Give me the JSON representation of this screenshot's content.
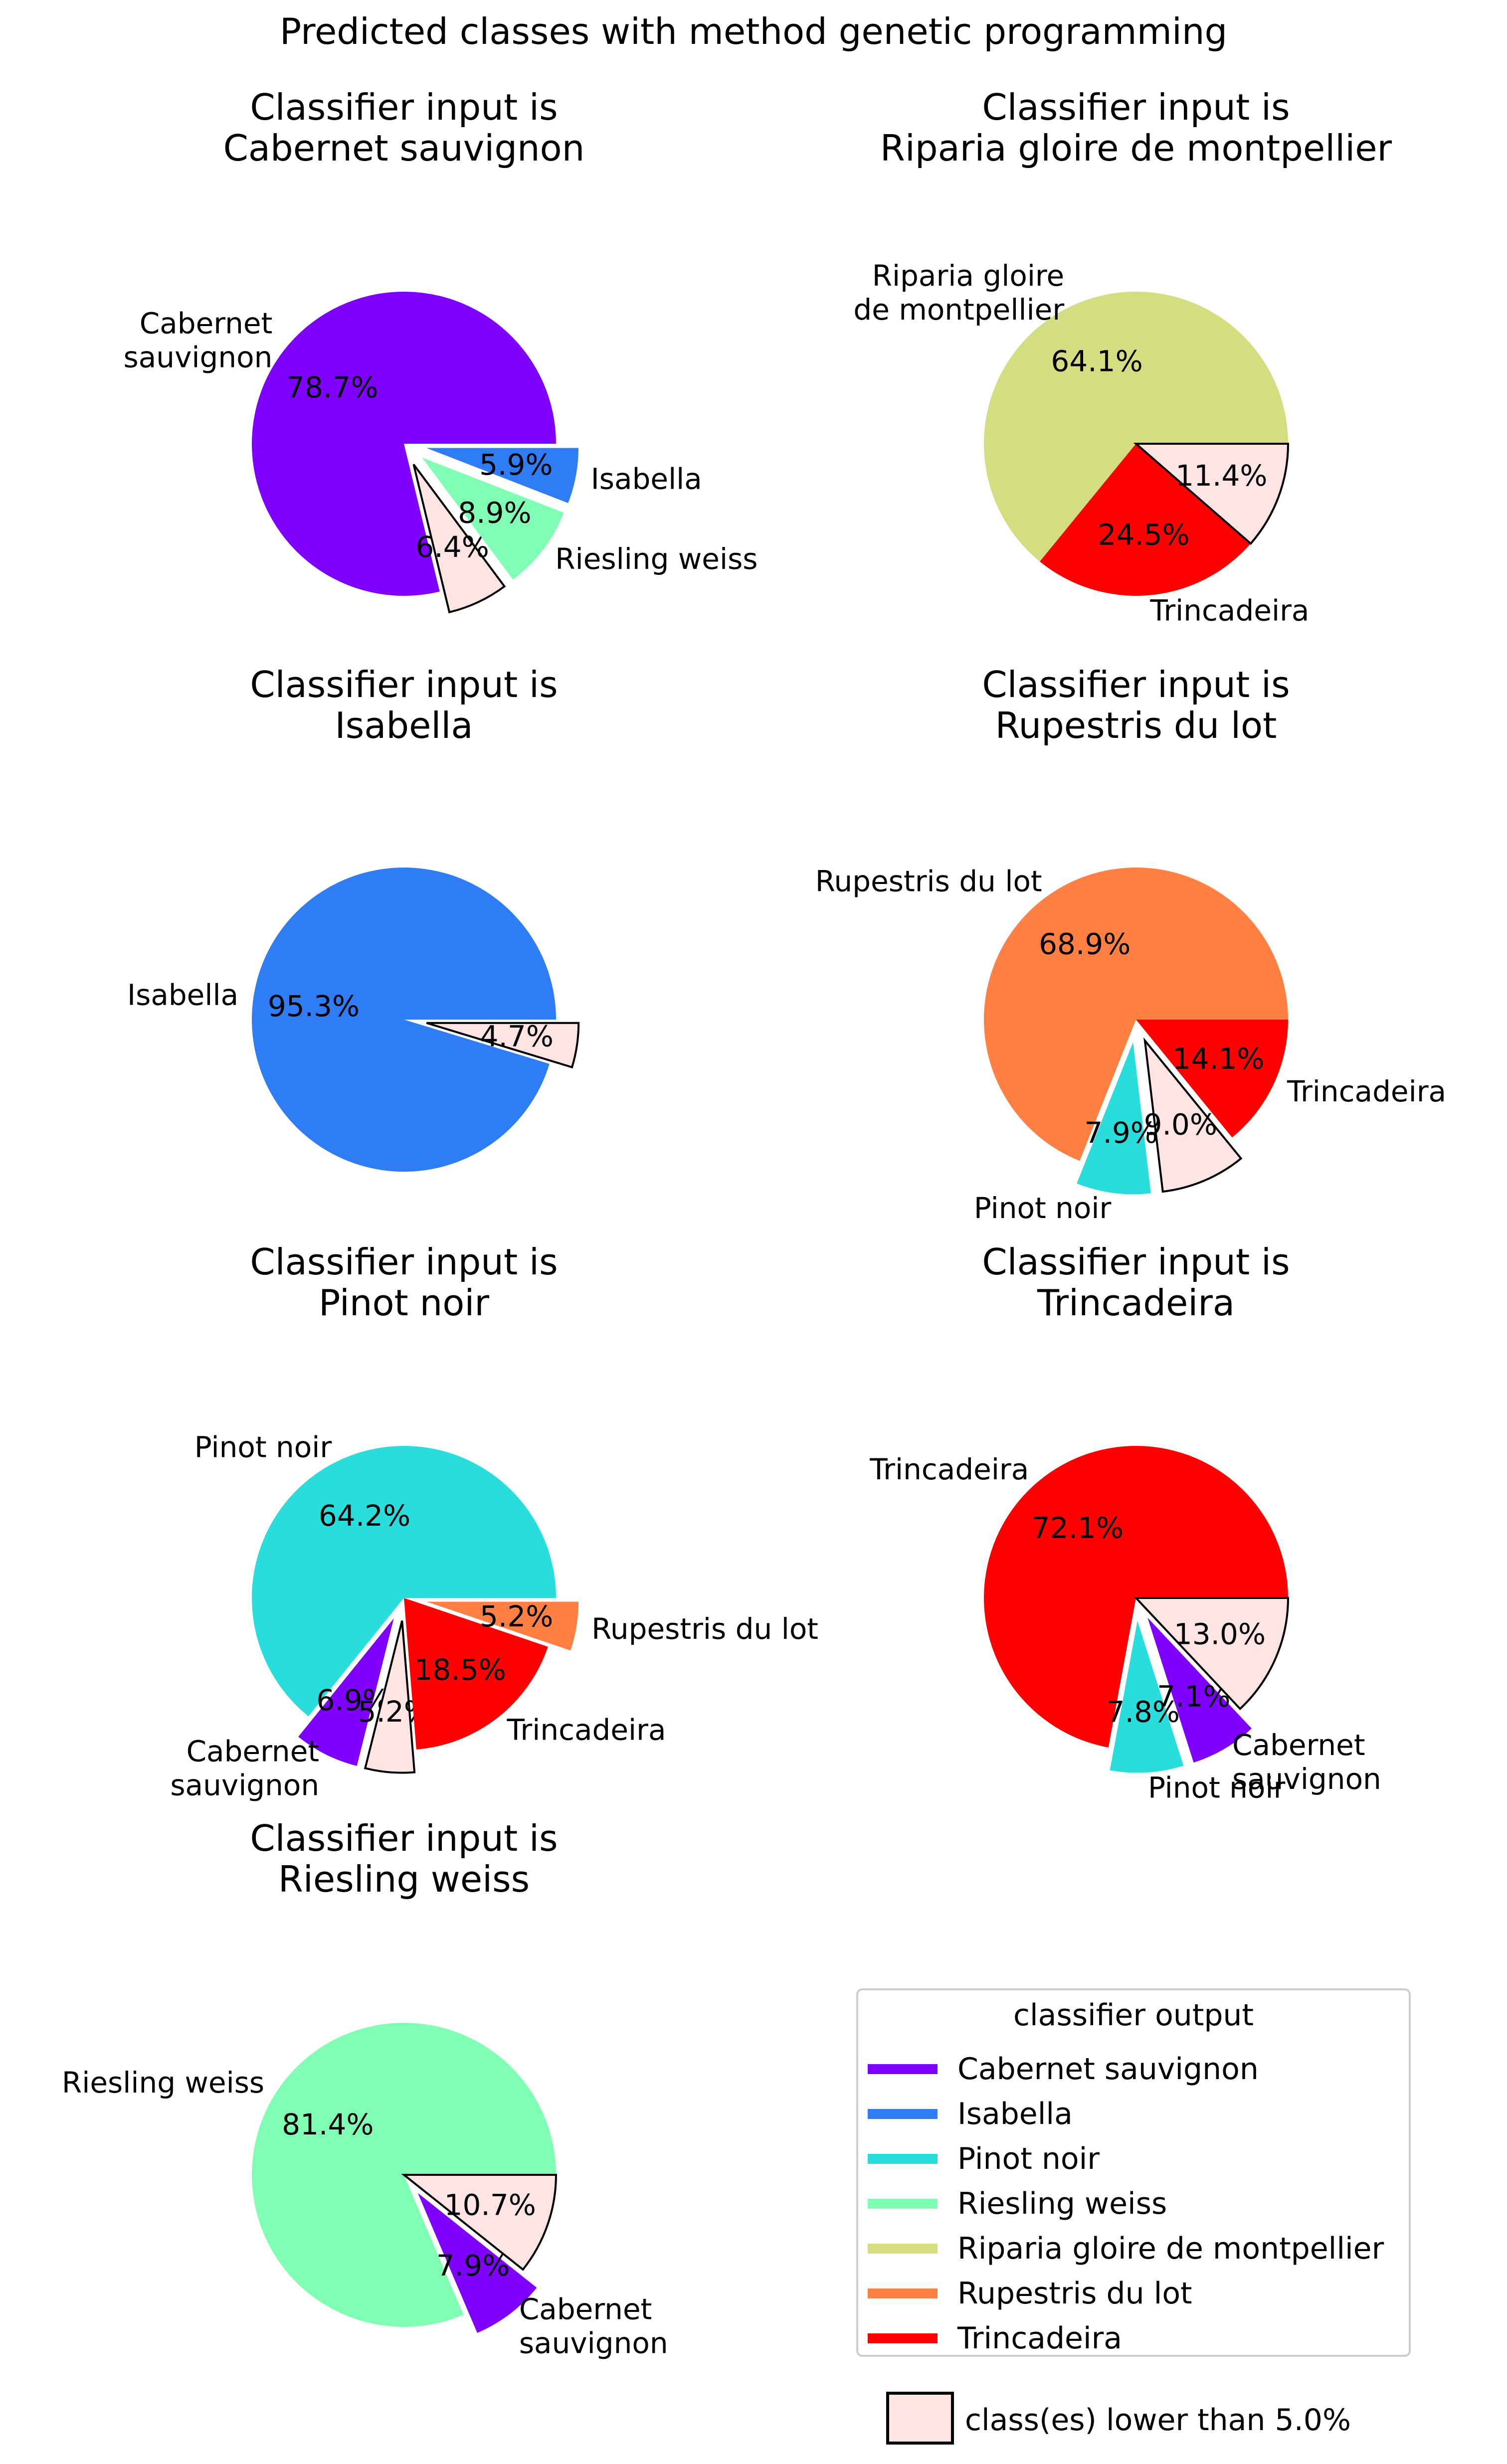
{
  "figure": {
    "title": "Predicted classes with method genetic programming",
    "subplot_title_prefix": "Classifier input is"
  },
  "colors": {
    "Cabernet sauvignon": "#8000ff",
    "Isabella": "#2e7df5",
    "Pinot noir": "#2adddd",
    "Riesling weiss": "#80ffb4",
    "Riparia gloire de montpellier": "#d4dd80",
    "Rupestris du lot": "#ff8042",
    "Trincadeira": "#ff0000",
    "others": "#ffe4e4"
  },
  "chart_data": [
    {
      "type": "pie",
      "title": "Classifier input is Cabernet sauvignon",
      "input_class": "Cabernet sauvignon",
      "slices": [
        {
          "label": "Cabernet sauvignon",
          "value": 78.7,
          "pct_text": "78.7%",
          "color_key": "Cabernet sauvignon",
          "explode": false,
          "label_lines": [
            "Cabernet",
            "sauvignon"
          ]
        },
        {
          "label": "class(es) lower than 5.0%",
          "value": 6.4,
          "pct_text": "6.4%",
          "color_key": "others",
          "explode": true,
          "label_lines": []
        },
        {
          "label": "Riesling weiss",
          "value": 8.9,
          "pct_text": "8.9%",
          "color_key": "Riesling weiss",
          "explode": true,
          "label_lines": [
            "Riesling weiss"
          ]
        },
        {
          "label": "Isabella",
          "value": 5.9,
          "pct_text": "5.9%",
          "color_key": "Isabella",
          "explode": true,
          "label_lines": [
            "Isabella"
          ]
        }
      ]
    },
    {
      "type": "pie",
      "title": "Classifier input is Riparia gloire de montpellier",
      "input_class": "Riparia gloire de montpellier",
      "slices": [
        {
          "label": "Riparia gloire de montpellier",
          "value": 64.1,
          "pct_text": "64.1%",
          "color_key": "Riparia gloire de montpellier",
          "explode": false,
          "label_lines": [
            "Riparia gloire",
            "de montpellier"
          ]
        },
        {
          "label": "Trincadeira",
          "value": 24.5,
          "pct_text": "24.5%",
          "color_key": "Trincadeira",
          "explode": false,
          "label_lines": [
            "Trincadeira"
          ]
        },
        {
          "label": "class(es) lower than 5.0%",
          "value": 11.4,
          "pct_text": "11.4%",
          "color_key": "others",
          "explode": false,
          "label_lines": []
        }
      ]
    },
    {
      "type": "pie",
      "title": "Classifier input is Isabella",
      "input_class": "Isabella",
      "slices": [
        {
          "label": "Isabella",
          "value": 95.3,
          "pct_text": "95.3%",
          "color_key": "Isabella",
          "explode": false,
          "label_lines": [
            "Isabella"
          ]
        },
        {
          "label": "class(es) lower than 5.0%",
          "value": 4.7,
          "pct_text": "4.7%",
          "color_key": "others",
          "explode": true,
          "label_lines": []
        }
      ]
    },
    {
      "type": "pie",
      "title": "Classifier input is Rupestris du lot",
      "input_class": "Rupestris du lot",
      "slices": [
        {
          "label": "Rupestris du lot",
          "value": 68.9,
          "pct_text": "68.9%",
          "color_key": "Rupestris du lot",
          "explode": false,
          "label_lines": [
            "Rupestris du lot"
          ]
        },
        {
          "label": "Pinot noir",
          "value": 7.9,
          "pct_text": "7.9%",
          "color_key": "Pinot noir",
          "explode": true,
          "label_lines": [
            "Pinot noir"
          ]
        },
        {
          "label": "class(es) lower than 5.0%",
          "value": 9.0,
          "pct_text": "9.0%",
          "color_key": "others",
          "explode": true,
          "label_lines": []
        },
        {
          "label": "Trincadeira",
          "value": 14.1,
          "pct_text": "14.1%",
          "color_key": "Trincadeira",
          "explode": false,
          "label_lines": [
            "Trincadeira"
          ]
        }
      ]
    },
    {
      "type": "pie",
      "title": "Classifier input is Pinot noir",
      "input_class": "Pinot noir",
      "slices": [
        {
          "label": "Pinot noir",
          "value": 64.2,
          "pct_text": "64.2%",
          "color_key": "Pinot noir",
          "explode": false,
          "label_lines": [
            "Pinot noir"
          ]
        },
        {
          "label": "Cabernet sauvignon",
          "value": 6.9,
          "pct_text": "6.9%",
          "color_key": "Cabernet sauvignon",
          "explode": true,
          "label_lines": [
            "Cabernet",
            "sauvignon"
          ]
        },
        {
          "label": "class(es) lower than 5.0%",
          "value": 5.2,
          "pct_text": "5.2%",
          "color_key": "others",
          "explode": true,
          "label_lines": []
        },
        {
          "label": "Trincadeira",
          "value": 18.5,
          "pct_text": "18.5%",
          "color_key": "Trincadeira",
          "explode": false,
          "label_lines": [
            "Trincadeira"
          ]
        },
        {
          "label": "Rupestris du lot",
          "value": 5.2,
          "pct_text": "5.2%",
          "color_key": "Rupestris du lot",
          "explode": true,
          "label_lines": [
            "Rupestris du lot"
          ]
        }
      ]
    },
    {
      "type": "pie",
      "title": "Classifier input is Trincadeira",
      "input_class": "Trincadeira",
      "slices": [
        {
          "label": "Trincadeira",
          "value": 72.1,
          "pct_text": "72.1%",
          "color_key": "Trincadeira",
          "explode": false,
          "label_lines": [
            "Trincadeira"
          ]
        },
        {
          "label": "Pinot noir",
          "value": 7.8,
          "pct_text": "7.8%",
          "color_key": "Pinot noir",
          "explode": true,
          "label_lines": [
            "Pinot noir"
          ]
        },
        {
          "label": "Cabernet sauvignon",
          "value": 7.1,
          "pct_text": "7.1%",
          "color_key": "Cabernet sauvignon",
          "explode": true,
          "label_lines": [
            "Cabernet",
            "sauvignon"
          ]
        },
        {
          "label": "class(es) lower than 5.0%",
          "value": 13.0,
          "pct_text": "13.0%",
          "color_key": "others",
          "explode": false,
          "label_lines": []
        }
      ]
    },
    {
      "type": "pie",
      "title": "Classifier input is Riesling weiss",
      "input_class": "Riesling weiss",
      "slices": [
        {
          "label": "Riesling weiss",
          "value": 81.4,
          "pct_text": "81.4%",
          "color_key": "Riesling weiss",
          "explode": false,
          "label_lines": [
            "Riesling weiss"
          ]
        },
        {
          "label": "Cabernet sauvignon",
          "value": 7.9,
          "pct_text": "7.9%",
          "color_key": "Cabernet sauvignon",
          "explode": true,
          "label_lines": [
            "Cabernet",
            "sauvignon"
          ]
        },
        {
          "label": "class(es) lower than 5.0%",
          "value": 10.7,
          "pct_text": "10.7%",
          "color_key": "others",
          "explode": false,
          "label_lines": []
        }
      ]
    }
  ],
  "legend": {
    "title": "classifier output",
    "entries": [
      {
        "label": "Cabernet sauvignon",
        "color_key": "Cabernet sauvignon"
      },
      {
        "label": "Isabella",
        "color_key": "Isabella"
      },
      {
        "label": "Pinot noir",
        "color_key": "Pinot noir"
      },
      {
        "label": "Riesling weiss",
        "color_key": "Riesling weiss"
      },
      {
        "label": "Riparia gloire de montpellier",
        "color_key": "Riparia gloire de montpellier"
      },
      {
        "label": "Rupestris du lot",
        "color_key": "Rupestris du lot"
      },
      {
        "label": "Trincadeira",
        "color_key": "Trincadeira"
      }
    ],
    "others_note": "class(es) lower than 5.0%"
  }
}
